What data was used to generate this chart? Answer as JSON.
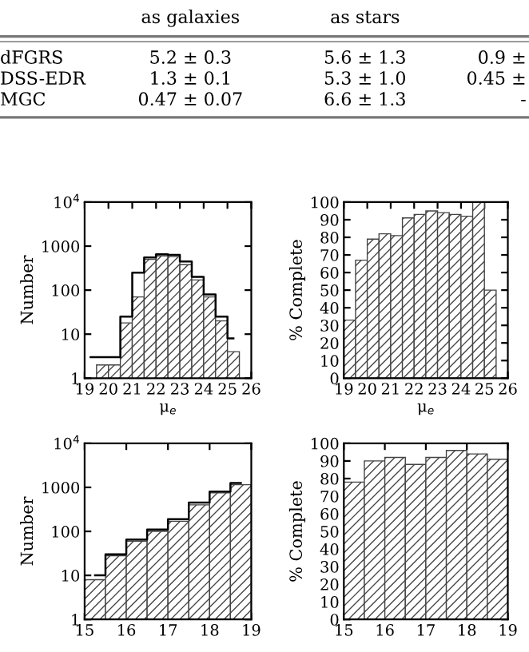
{
  "chart_data": [
    {
      "type": "other",
      "categories": [
        null,
        "as galaxies",
        "as stars",
        null
      ],
      "y_categories": [
        "dFGRS",
        "DSS-EDR",
        "MGC"
      ],
      "cell_labels": [
        [
          "5.2 ± 0.3",
          "5.6 ± 1.3",
          "0.9 ±"
        ],
        [
          "1.3 ± 0.1",
          "5.3 ± 1.0",
          "0.45 ±"
        ],
        [
          "0.47 ± 0.07",
          "6.6 ± 1.3",
          "-"
        ]
      ]
    },
    {
      "type": "histogram",
      "ylabel": "Number",
      "xlabel": "μ$_{e}$",
      "log": "y",
      "xlim": [
        19,
        26
      ],
      "xticks": [
        19,
        20,
        21,
        22,
        23,
        24,
        25,
        26
      ],
      "ylim": [
        1,
        10000
      ],
      "yticks": [
        1,
        10,
        100,
        1000,
        {
          "value": 10000,
          "label": "10$^{4}$"
        }
      ],
      "bins": [
        19,
        19.5,
        20,
        20.5,
        21,
        21.5,
        22,
        22.5,
        23,
        23.5,
        24,
        24.5,
        25,
        25.5,
        26
      ],
      "series": [
        {
          "type": "step",
          "color": "#000000",
          "x": [
            19.25,
            19.75,
            20.25,
            20.75,
            21.25,
            21.75,
            22.25,
            22.75,
            23.25,
            23.75,
            24.25,
            24.75,
            25.25
          ],
          "values": [
            3,
            3,
            3,
            25,
            250,
            550,
            650,
            630,
            450,
            200,
            80,
            25,
            8
          ]
        },
        {
          "color": "#444444",
          "values": [
            null,
            2,
            2,
            18,
            70,
            500,
            600,
            580,
            380,
            170,
            70,
            20,
            4,
            null
          ]
        }
      ]
    },
    {
      "type": "histogram",
      "ylabel": "% Complete",
      "xlabel": "μ$_{e}$",
      "xlim": [
        19,
        26
      ],
      "xticks": [
        19,
        20,
        21,
        22,
        23,
        24,
        25,
        26
      ],
      "ylim": [
        0,
        100
      ],
      "yticks": [
        0,
        10,
        20,
        30,
        40,
        50,
        60,
        70,
        80,
        90,
        100
      ],
      "bins": [
        19,
        19.5,
        20,
        20.5,
        21,
        21.5,
        22,
        22.5,
        23,
        23.5,
        24,
        24.5,
        25,
        25.5
      ],
      "series": [
        {
          "color": "#444444",
          "values": [
            33,
            67,
            79,
            82,
            81,
            91,
            93,
            95,
            94,
            93,
            92,
            100,
            50
          ]
        }
      ]
    },
    {
      "type": "histogram",
      "ylabel": "Number",
      "log": "y",
      "xlim": [
        15,
        19
      ],
      "xticks": [
        15,
        16,
        17,
        18,
        19
      ],
      "ylim": [
        1,
        10000
      ],
      "yticks": [
        1,
        10,
        100,
        1000,
        {
          "value": 10000,
          "label": "10$^{4}$"
        }
      ],
      "bins": [
        15,
        15.5,
        16,
        16.5,
        17,
        17.5,
        18,
        18.5,
        19
      ],
      "series": [
        {
          "type": "step",
          "color": "#000000",
          "x": [
            15.25,
            15.75,
            16.25,
            16.75,
            17.25,
            17.75,
            18.25,
            18.75
          ],
          "values": [
            10,
            30,
            65,
            110,
            190,
            450,
            800,
            1250
          ]
        },
        {
          "color": "#444444",
          "values": [
            8,
            28,
            60,
            100,
            170,
            400,
            750,
            1150
          ]
        }
      ]
    },
    {
      "type": "histogram",
      "ylabel": "% Complete",
      "xlim": [
        15,
        19
      ],
      "xticks": [
        15,
        16,
        17,
        18,
        19
      ],
      "ylim": [
        0,
        100
      ],
      "yticks": [
        0,
        10,
        20,
        30,
        40,
        50,
        60,
        70,
        80,
        90,
        100
      ],
      "bins": [
        15,
        15.5,
        16,
        16.5,
        17,
        17.5,
        18,
        18.5,
        19
      ],
      "series": [
        {
          "color": "#444444",
          "values": [
            78,
            90,
            92,
            88,
            92,
            96,
            94,
            91
          ]
        }
      ]
    }
  ]
}
